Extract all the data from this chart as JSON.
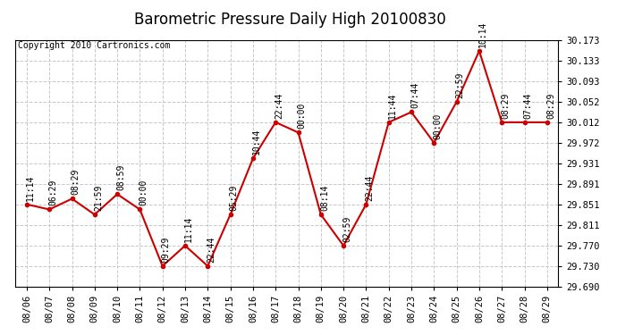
{
  "title": "Barometric Pressure Daily High 20100830",
  "copyright": "Copyright 2010 Cartronics.com",
  "dates": [
    "08/06",
    "08/07",
    "08/08",
    "08/09",
    "08/10",
    "08/11",
    "08/12",
    "08/13",
    "08/14",
    "08/15",
    "08/16",
    "08/17",
    "08/18",
    "08/19",
    "08/20",
    "08/21",
    "08/22",
    "08/23",
    "08/24",
    "08/25",
    "08/26",
    "08/27",
    "08/28",
    "08/29"
  ],
  "values": [
    29.851,
    29.841,
    29.862,
    29.831,
    29.871,
    29.841,
    29.73,
    29.77,
    29.73,
    29.831,
    29.941,
    30.012,
    29.992,
    29.831,
    29.77,
    29.851,
    30.012,
    30.032,
    29.972,
    30.052,
    30.152,
    30.012,
    30.012,
    30.012
  ],
  "times": [
    "11:14",
    "06:29",
    "08:29",
    "21:59",
    "08:59",
    "00:00",
    "09:29",
    "11:14",
    "22:44",
    "05:29",
    "10:44",
    "22:44",
    "00:00",
    "08:14",
    "02:59",
    "22:44",
    "11:44",
    "07:44",
    "00:00",
    "22:59",
    "10:14",
    "08:29",
    "07:44",
    "08:29"
  ],
  "ylim": [
    29.69,
    30.173
  ],
  "yticks": [
    29.69,
    29.73,
    29.77,
    29.811,
    29.851,
    29.891,
    29.931,
    29.972,
    30.012,
    30.052,
    30.093,
    30.133,
    30.173
  ],
  "line_color": "#cc0000",
  "marker_color": "#cc0000",
  "bg_color": "#ffffff",
  "grid_color": "#c8c8c8",
  "title_fontsize": 12,
  "annot_fontsize": 7,
  "tick_fontsize": 7.5,
  "copyright_fontsize": 7
}
